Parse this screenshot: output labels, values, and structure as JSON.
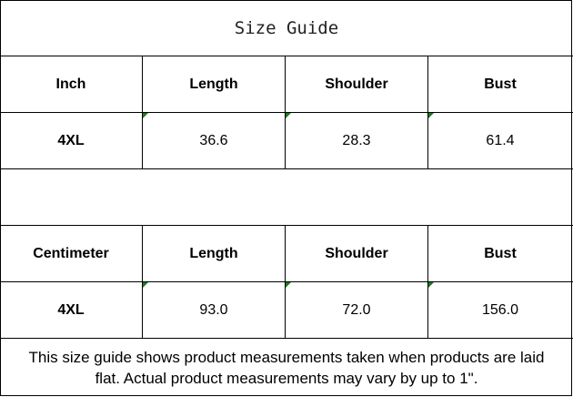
{
  "title": "Size Guide",
  "inch": {
    "headers": [
      "Inch",
      "Length",
      "Shoulder",
      "Bust"
    ],
    "row": [
      "4XL",
      "36.6",
      "28.3",
      "61.4"
    ]
  },
  "cm": {
    "headers": [
      "Centimeter",
      "Length",
      "Shoulder",
      "Bust"
    ],
    "row": [
      "4XL",
      "93.0",
      "72.0",
      "156.0"
    ]
  },
  "note": "This size guide shows product measurements taken when products are laid flat. Actual product measurements may vary by up to 1\".",
  "colors": {
    "comment_marker": "#1a7a1a"
  }
}
